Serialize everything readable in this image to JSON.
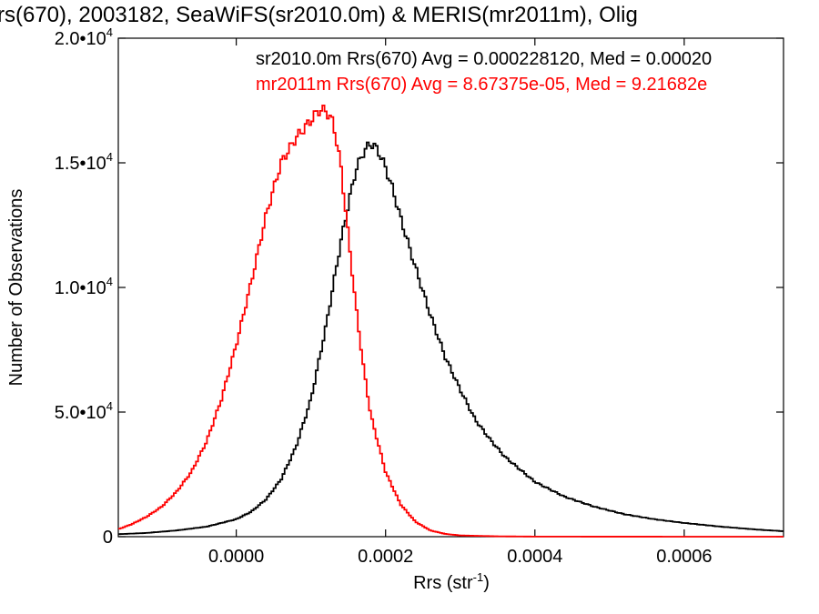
{
  "chart_data": {
    "type": "line",
    "title": "rs(670), 2003182, SeaWiFS(sr2010.0m) & MERIS(mr2011m), Olig",
    "xlabel": "Rrs (str",
    "xlabel_sup": "-1",
    "xlabel_close": ")",
    "ylabel": "Number of Observations",
    "xlim": [
      -0.000158,
      0.000733
    ],
    "ylim": [
      0,
      20000
    ],
    "x_ticks": [
      {
        "value": 0.0,
        "label": "0.0000"
      },
      {
        "value": 0.0002,
        "label": "0.0002"
      },
      {
        "value": 0.0004,
        "label": "0.0004"
      },
      {
        "value": 0.0006,
        "label": "0.0006"
      }
    ],
    "y_ticks": [
      {
        "value": 0,
        "mant": "0",
        "exp": ""
      },
      {
        "value": 5000,
        "mant": "5.0•1",
        "exp": "0"
      },
      {
        "value": 10000,
        "mant": "1.0•1",
        "exp": "0"
      },
      {
        "value": 15000,
        "mant": "1.5•1",
        "exp": "0"
      },
      {
        "value": 20000,
        "mant": "2.0•1",
        "exp": "0"
      }
    ],
    "y_tick_base": "0",
    "y_tick_exp": "4",
    "grid": false,
    "legend_position": "top-right",
    "series": [
      {
        "name": "sr2010.0m",
        "label": "sr2010.0m Rrs(670) Avg = 0.000228120, Med = 0.00020",
        "color": "#000000",
        "points": [
          [
            -0.000158,
            100
          ],
          [
            -0.00012,
            150
          ],
          [
            -8e-05,
            250
          ],
          [
            -4e-05,
            400
          ],
          [
            0.0,
            700
          ],
          [
            2e-05,
            1000
          ],
          [
            4e-05,
            1500
          ],
          [
            6e-05,
            2300
          ],
          [
            8e-05,
            3600
          ],
          [
            0.0001,
            5500
          ],
          [
            0.00012,
            8400
          ],
          [
            0.00014,
            11800
          ],
          [
            0.00015,
            13300
          ],
          [
            0.00016,
            14700
          ],
          [
            0.00017,
            15400
          ],
          [
            0.00018,
            15800
          ],
          [
            0.00019,
            15500
          ],
          [
            0.0002,
            14800
          ],
          [
            0.00021,
            13900
          ],
          [
            0.00022,
            12800
          ],
          [
            0.00024,
            10800
          ],
          [
            0.00026,
            8900
          ],
          [
            0.00028,
            7200
          ],
          [
            0.0003,
            5900
          ],
          [
            0.00032,
            4700
          ],
          [
            0.00034,
            3900
          ],
          [
            0.00036,
            3200
          ],
          [
            0.00038,
            2700
          ],
          [
            0.0004,
            2200
          ],
          [
            0.00044,
            1600
          ],
          [
            0.00048,
            1200
          ],
          [
            0.00052,
            900
          ],
          [
            0.00056,
            700
          ],
          [
            0.0006,
            550
          ],
          [
            0.00065,
            400
          ],
          [
            0.0007,
            280
          ],
          [
            0.000733,
            220
          ]
        ]
      },
      {
        "name": "mr2011m",
        "label": "mr2011m Rrs(670) Avg = 8.67375e-05, Med = 9.21682e",
        "color": "#ff0000",
        "points": [
          [
            -0.000158,
            300
          ],
          [
            -0.00014,
            500
          ],
          [
            -0.00012,
            800
          ],
          [
            -0.0001,
            1200
          ],
          [
            -8e-05,
            1800
          ],
          [
            -6e-05,
            2600
          ],
          [
            -4e-05,
            3800
          ],
          [
            -2e-05,
            5500
          ],
          [
            0.0,
            7700
          ],
          [
            2e-05,
            10200
          ],
          [
            4e-05,
            12900
          ],
          [
            6e-05,
            15000
          ],
          [
            8e-05,
            16000
          ],
          [
            0.0001,
            16700
          ],
          [
            0.00011,
            17100
          ],
          [
            0.00012,
            17100
          ],
          [
            0.00013,
            16600
          ],
          [
            0.00014,
            14900
          ],
          [
            0.00015,
            12100
          ],
          [
            0.00016,
            9300
          ],
          [
            0.00017,
            6900
          ],
          [
            0.00018,
            4900
          ],
          [
            0.0002,
            2600
          ],
          [
            0.00022,
            1300
          ],
          [
            0.00024,
            600
          ],
          [
            0.00026,
            250
          ],
          [
            0.00028,
            110
          ],
          [
            0.0003,
            50
          ],
          [
            0.00035,
            15
          ],
          [
            0.0004,
            5
          ],
          [
            0.0005,
            2
          ],
          [
            0.0006,
            1
          ],
          [
            0.000733,
            0
          ]
        ]
      }
    ]
  }
}
